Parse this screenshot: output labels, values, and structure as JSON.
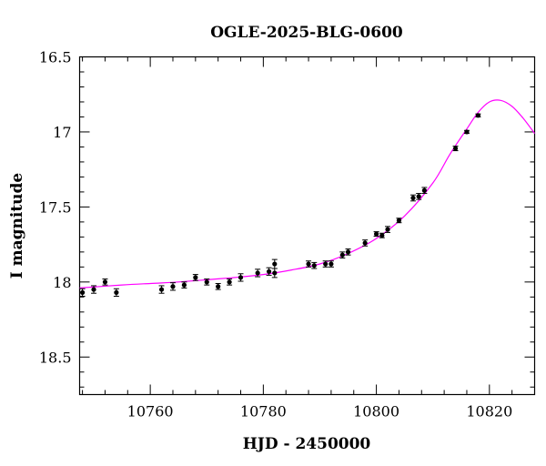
{
  "chart_data": {
    "type": "scatter",
    "title": "OGLE-2025-BLG-0600",
    "xlabel": "HJD - 2450000",
    "ylabel": "I magnitude",
    "xlim": [
      10747.5,
      10828
    ],
    "ylim": [
      18.75,
      16.5
    ],
    "y_inverted": true,
    "grid": false,
    "x_ticks": [
      10760,
      10780,
      10800,
      10820
    ],
    "y_ticks": [
      16.5,
      17,
      17.5,
      18,
      18.5
    ],
    "x_tick_labels": [
      "10760",
      "10780",
      "10800",
      "10820"
    ],
    "y_tick_labels": [
      "16.5",
      "17",
      "17.5",
      "18",
      "18.5"
    ],
    "colors": {
      "model": "#ff00ff",
      "points": "#000000",
      "axes": "#000000"
    },
    "series": [
      {
        "kind": "points",
        "x": [
          10748,
          10750,
          10752,
          10754,
          10762,
          10764,
          10766,
          10768,
          10770,
          10772,
          10774,
          10776,
          10779,
          10781,
          10782,
          10782,
          10788,
          10789,
          10791,
          10792,
          10794,
          10795,
          10798,
          10800,
          10801,
          10802,
          10804,
          10806.5,
          10807.5,
          10808.5,
          10814,
          10816,
          10818
        ],
        "y": [
          18.07,
          18.05,
          18.0,
          18.07,
          18.05,
          18.03,
          18.02,
          17.97,
          18.0,
          18.03,
          18.0,
          17.97,
          17.94,
          17.93,
          17.88,
          17.94,
          17.88,
          17.89,
          17.88,
          17.88,
          17.82,
          17.8,
          17.74,
          17.68,
          17.69,
          17.65,
          17.59,
          17.44,
          17.43,
          17.39,
          17.11,
          17.0,
          16.89
        ],
        "yerr": [
          0.025,
          0.025,
          0.02,
          0.025,
          0.025,
          0.025,
          0.02,
          0.02,
          0.02,
          0.02,
          0.02,
          0.025,
          0.025,
          0.025,
          0.03,
          0.03,
          0.02,
          0.02,
          0.02,
          0.02,
          0.02,
          0.02,
          0.02,
          0.015,
          0.015,
          0.02,
          0.015,
          0.02,
          0.02,
          0.02,
          0.015,
          0.01,
          0.01
        ]
      },
      {
        "kind": "model",
        "x": [
          10747.5,
          10755,
          10760,
          10765,
          10770,
          10775,
          10780,
          10785,
          10790,
          10795,
          10800,
          10805,
          10810,
          10813,
          10816,
          10818,
          10820,
          10822,
          10824,
          10826,
          10828
        ],
        "y": [
          18.04,
          18.02,
          18.01,
          18.0,
          17.985,
          17.97,
          17.95,
          17.92,
          17.88,
          17.81,
          17.71,
          17.56,
          17.34,
          17.15,
          16.98,
          16.87,
          16.8,
          16.79,
          16.83,
          16.91,
          17.01
        ]
      }
    ]
  }
}
